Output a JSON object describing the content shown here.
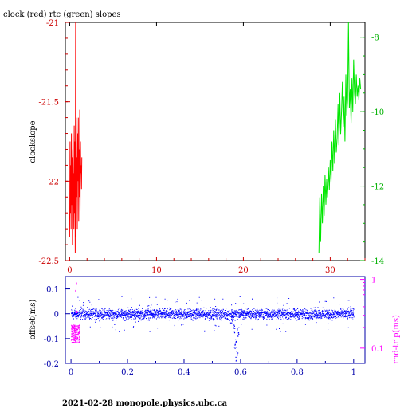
{
  "title": "clock (red) rtc (green) slopes",
  "footer": "2021-02-28  monopole.physics.ubc.ca",
  "colors": {
    "red": "#ff0000",
    "green": "#00e600",
    "blue": "#0000ff",
    "magenta": "#ff00ff",
    "axis_red": "#cc0000",
    "axis_green": "#00b000",
    "axis_blue": "#0000aa"
  },
  "chart_data": [
    {
      "type": "line",
      "ylabel": "clockslope",
      "xlim": [
        -0.5,
        34
      ],
      "ylim_left": [
        -22.5,
        -21
      ],
      "ylim_right": [
        -14,
        -7.6
      ],
      "xticks": [
        "0",
        "10",
        "20",
        "30"
      ],
      "yticks_left": [
        "-21",
        "-21.5",
        "-22",
        "-22.5"
      ],
      "yticks_right": [
        "-8",
        "-10",
        "-12",
        "-14"
      ],
      "series": [
        {
          "name": "clock (red)",
          "axis": "left",
          "x": [
            0.0,
            0.04,
            0.08,
            0.12,
            0.16,
            0.2,
            0.24,
            0.28,
            0.32,
            0.36,
            0.4,
            0.44,
            0.48,
            0.52,
            0.56,
            0.6,
            0.64,
            0.68,
            0.72,
            0.76,
            0.8,
            0.84,
            0.88,
            0.92,
            0.96,
            1.0,
            1.04,
            1.08,
            1.12,
            1.16,
            1.2,
            1.24,
            1.28,
            1.32,
            1.36,
            1.4
          ],
          "values": [
            -22.35,
            -21.75,
            -22.2,
            -21.9,
            -22.3,
            -21.7,
            -22.15,
            -21.85,
            -22.4,
            -21.8,
            -22.05,
            -21.95,
            -22.3,
            -21.65,
            -22.2,
            -21.75,
            -22.45,
            -21.0,
            -22.35,
            -21.6,
            -22.1,
            -21.85,
            -22.3,
            -21.7,
            -22.0,
            -21.6,
            -22.25,
            -21.8,
            -22.1,
            -21.55,
            -22.2,
            -21.75,
            -21.95,
            -21.9,
            -22.05,
            -21.85
          ]
        },
        {
          "name": "rtc (green)",
          "axis": "right",
          "x": [
            28.7,
            28.8,
            28.9,
            29.0,
            29.1,
            29.2,
            29.3,
            29.4,
            29.5,
            29.6,
            29.7,
            29.8,
            29.9,
            30.0,
            30.1,
            30.2,
            30.3,
            30.4,
            30.5,
            30.6,
            30.7,
            30.8,
            30.9,
            31.0,
            31.1,
            31.2,
            31.3,
            31.4,
            31.5,
            31.6,
            31.7,
            31.8,
            31.9,
            32.0,
            32.1,
            32.2,
            32.3,
            32.4,
            32.5,
            32.6,
            32.7,
            32.8,
            32.9,
            33.0,
            33.1,
            33.2,
            33.3,
            33.4,
            33.5
          ],
          "values": [
            -13.8,
            -12.3,
            -13.5,
            -12.2,
            -13.0,
            -12.0,
            -12.8,
            -11.7,
            -12.5,
            -11.8,
            -12.3,
            -11.5,
            -12.1,
            -11.3,
            -11.9,
            -10.8,
            -11.6,
            -10.5,
            -11.4,
            -10.2,
            -11.1,
            -10.7,
            -9.8,
            -10.9,
            -9.5,
            -10.6,
            -10.0,
            -9.2,
            -10.4,
            -9.6,
            -10.8,
            -9.0,
            -10.1,
            -9.7,
            -7.6,
            -9.9,
            -9.4,
            -10.3,
            -9.1,
            -10.0,
            -8.6,
            -9.5,
            -9.8,
            -9.0,
            -9.6,
            -9.3,
            -9.7,
            -9.1,
            -9.4
          ]
        }
      ]
    },
    {
      "type": "scatter",
      "ylabel_left": "offset(ms)",
      "ylabel_right": "rnd-trip(ms)",
      "xlim": [
        -0.02,
        1.04
      ],
      "ylim_left": [
        -0.2,
        0.15
      ],
      "ylim_right_log": [
        0.06,
        1.1
      ],
      "xticks": [
        "0",
        "0.2",
        "0.4",
        "0.6",
        "0.8",
        "1"
      ],
      "yticks_left": [
        "0.1",
        "0",
        "-0.1",
        "-0.2"
      ],
      "yticks_right": [
        "1",
        "0.1"
      ],
      "series": [
        {
          "name": "offset",
          "axis": "left",
          "x_range": [
            0,
            1
          ],
          "y_center": 0.0,
          "y_spread": 0.03,
          "dip": {
            "x": [
              0.57,
              0.575,
              0.58,
              0.585,
              0.59
            ],
            "values": [
              -0.02,
              -0.06,
              -0.12,
              -0.17,
              -0.07
            ]
          }
        },
        {
          "name": "rnd-trip",
          "axis": "right",
          "x_range": [
            0,
            0.03
          ],
          "values_band": [
            0.12,
            0.22
          ],
          "outliers": [
            0.7,
            0.9,
            0.35
          ]
        }
      ]
    }
  ]
}
